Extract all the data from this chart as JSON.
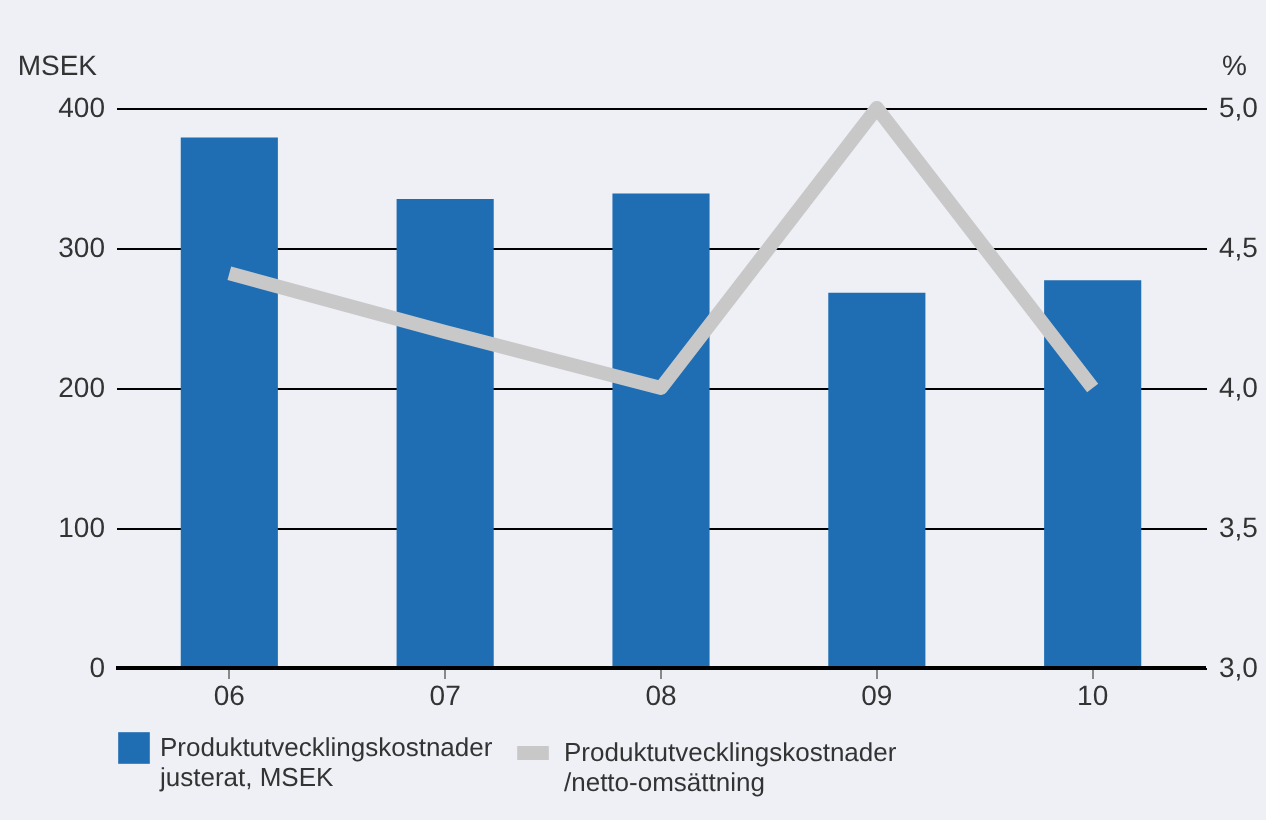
{
  "chart_data": {
    "type": "bar",
    "categories": [
      "06",
      "07",
      "08",
      "09",
      "10"
    ],
    "ylabel": "MSEK",
    "y2label": "%",
    "ylim": [
      0,
      400
    ],
    "yticks": [
      0,
      100,
      200,
      300,
      400
    ],
    "y2lim": [
      3,
      5
    ],
    "y2ticks": [
      {
        "value": 3,
        "label": "3,0"
      },
      {
        "value": 3.5,
        "label": "3,5"
      },
      {
        "value": 4,
        "label": "4,0"
      },
      {
        "value": 4.5,
        "label": "4,5"
      },
      {
        "value": 5,
        "label": "5,0"
      }
    ],
    "grid": "y",
    "legend": "bottom",
    "series": [
      {
        "name": "Produktutvecklingskostnader justerat, MSEK",
        "color": "#1f6db3",
        "values": [
          379,
          335,
          339,
          268,
          277
        ]
      },
      {
        "name": "Produktutvecklingskostnader /netto-omsättning",
        "color": "#c8c8c8",
        "type": "line",
        "axis": "y2",
        "values": [
          4.41,
          4.2,
          4.0,
          5.0,
          4.0
        ]
      }
    ]
  }
}
